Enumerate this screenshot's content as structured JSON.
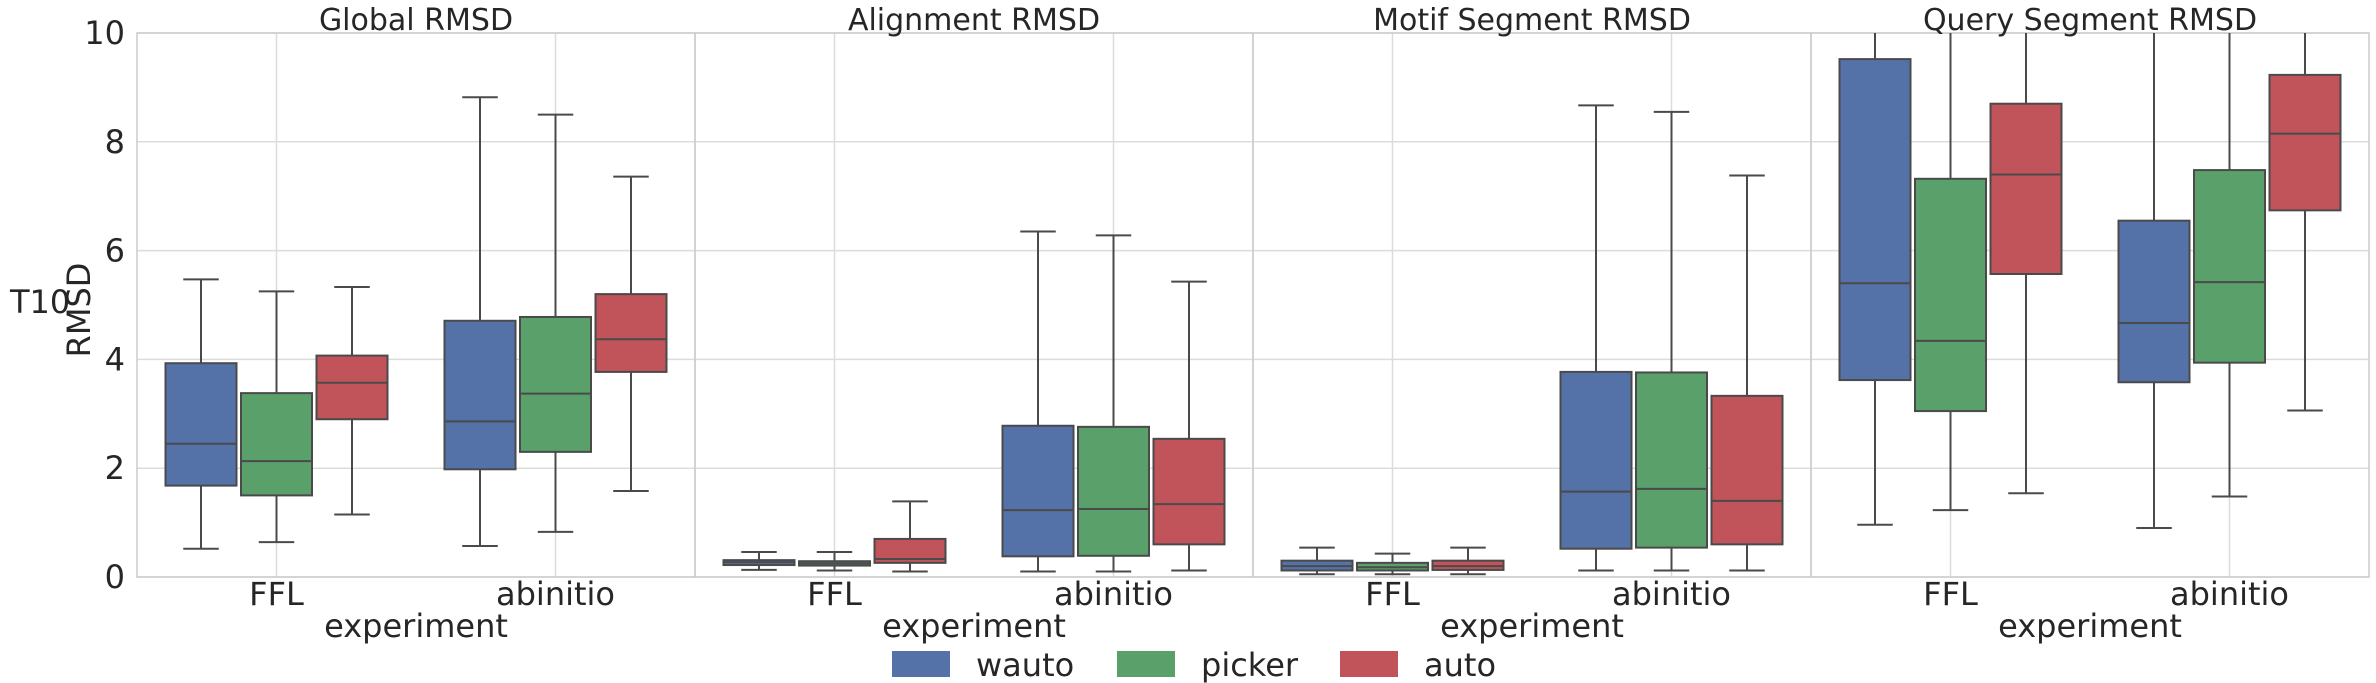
{
  "chart_data": {
    "type": "box",
    "row_label": "T10",
    "ylabel": "RMSD",
    "xlabel": "experiment",
    "ylim": [
      0,
      10
    ],
    "yticks": [
      0,
      2,
      4,
      6,
      8,
      10
    ],
    "grid": true,
    "legend_position": "bottom-center",
    "categories": [
      "FFL",
      "abinitio"
    ],
    "series": [
      {
        "name": "wauto",
        "color": "#5572a8"
      },
      {
        "name": "picker",
        "color": "#5aa06a"
      },
      {
        "name": "auto",
        "color": "#c0545a"
      }
    ],
    "panels": [
      {
        "title": "Global RMSD",
        "boxes": [
          [
            {
              "whislo": 0.52,
              "q1": 1.68,
              "med": 2.45,
              "q3": 3.93,
              "whishi": 5.47
            },
            {
              "whislo": 0.64,
              "q1": 1.5,
              "med": 2.13,
              "q3": 3.38,
              "whishi": 5.25
            },
            {
              "whislo": 1.15,
              "q1": 2.9,
              "med": 3.57,
              "q3": 4.07,
              "whishi": 5.33
            }
          ],
          [
            {
              "whislo": 0.57,
              "q1": 1.98,
              "med": 2.86,
              "q3": 4.71,
              "whishi": 8.82
            },
            {
              "whislo": 0.83,
              "q1": 2.3,
              "med": 3.37,
              "q3": 4.78,
              "whishi": 8.5
            },
            {
              "whislo": 1.58,
              "q1": 3.77,
              "med": 4.37,
              "q3": 5.2,
              "whishi": 7.36
            }
          ]
        ]
      },
      {
        "title": "Alignment RMSD",
        "boxes": [
          [
            {
              "whislo": 0.13,
              "q1": 0.22,
              "med": 0.27,
              "q3": 0.31,
              "whishi": 0.46
            },
            {
              "whislo": 0.12,
              "q1": 0.21,
              "med": 0.25,
              "q3": 0.29,
              "whishi": 0.46
            },
            {
              "whislo": 0.1,
              "q1": 0.26,
              "med": 0.33,
              "q3": 0.7,
              "whishi": 1.39
            }
          ],
          [
            {
              "whislo": 0.1,
              "q1": 0.38,
              "med": 1.23,
              "q3": 2.78,
              "whishi": 6.35
            },
            {
              "whislo": 0.1,
              "q1": 0.39,
              "med": 1.25,
              "q3": 2.76,
              "whishi": 6.28
            },
            {
              "whislo": 0.12,
              "q1": 0.6,
              "med": 1.34,
              "q3": 2.54,
              "whishi": 5.43
            }
          ]
        ]
      },
      {
        "title": "Motif Segment RMSD",
        "boxes": [
          [
            {
              "whislo": 0.05,
              "q1": 0.12,
              "med": 0.2,
              "q3": 0.3,
              "whishi": 0.54
            },
            {
              "whislo": 0.05,
              "q1": 0.12,
              "med": 0.18,
              "q3": 0.26,
              "whishi": 0.43
            },
            {
              "whislo": 0.05,
              "q1": 0.13,
              "med": 0.2,
              "q3": 0.3,
              "whishi": 0.54
            }
          ],
          [
            {
              "whislo": 0.12,
              "q1": 0.52,
              "med": 1.57,
              "q3": 3.77,
              "whishi": 8.67
            },
            {
              "whislo": 0.12,
              "q1": 0.54,
              "med": 1.62,
              "q3": 3.76,
              "whishi": 8.55
            },
            {
              "whislo": 0.12,
              "q1": 0.6,
              "med": 1.4,
              "q3": 3.33,
              "whishi": 7.38
            }
          ]
        ]
      },
      {
        "title": "Query Segment RMSD",
        "boxes": [
          [
            {
              "whislo": 0.96,
              "q1": 3.62,
              "med": 5.4,
              "q3": 9.52,
              "whishi": 10.5
            },
            {
              "whislo": 1.23,
              "q1": 3.05,
              "med": 4.34,
              "q3": 7.32,
              "whishi": 10.5
            },
            {
              "whislo": 1.54,
              "q1": 5.57,
              "med": 7.4,
              "q3": 8.7,
              "whishi": 10.5
            }
          ],
          [
            {
              "whislo": 0.9,
              "q1": 3.58,
              "med": 4.67,
              "q3": 6.55,
              "whishi": 10.5
            },
            {
              "whislo": 1.48,
              "q1": 3.94,
              "med": 5.42,
              "q3": 7.48,
              "whishi": 10.5
            },
            {
              "whislo": 3.06,
              "q1": 6.74,
              "med": 8.15,
              "q3": 9.23,
              "whishi": 10.5
            }
          ]
        ]
      }
    ]
  }
}
